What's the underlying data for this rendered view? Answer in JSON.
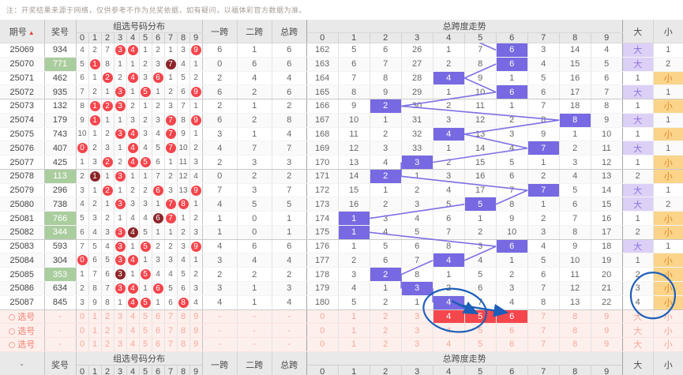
{
  "note": "注：开奖结果来源于网络，仅供参考不作为兑奖依据，如有疑问，以福体彩官方数据为准。",
  "header": {
    "period_label": "期号",
    "sort_icon": "▲",
    "prize_label": "奖号",
    "dist_group_label": "组选号码分布",
    "span1_label": "一跨",
    "span2_label": "二跨",
    "span_total_label": "总跨",
    "trend_group_label": "总跨度走势",
    "big_label": "大",
    "small_label": "小",
    "digits": [
      "0",
      "1",
      "2",
      "3",
      "4",
      "5",
      "6",
      "7",
      "8",
      "9"
    ],
    "footer_period_label": "-"
  },
  "colors": {
    "red_circle": "#f3454c",
    "dark_circle": "#8c2428",
    "prize_green": "#aacd9e",
    "trend_hit": "#7669e1",
    "trend_line": "#7d70e4",
    "big_bg": "#ddd0f7",
    "big_text": "#8e70dc",
    "small_bg": "#fbd489",
    "small_text": "#e0862f",
    "pick_bg": "#fdefec",
    "pick_red": "#f4474d",
    "annotation_blue": "#1d5eb8"
  },
  "chart_data": {
    "type": "table",
    "title": "总跨度走势",
    "columns": [
      "期号",
      "奖号",
      "组选0",
      "组选1",
      "组选2",
      "组选3",
      "组选4",
      "组选5",
      "组选6",
      "组选7",
      "组选8",
      "组选9",
      "一跨",
      "二跨",
      "总跨",
      "跨0",
      "跨1",
      "跨2",
      "跨3",
      "跨4",
      "跨5",
      "跨6",
      "跨7",
      "跨8",
      "跨9",
      "大",
      "小"
    ],
    "span_series": {
      "x": [
        "25069",
        "25070",
        "25071",
        "25072",
        "25073",
        "25074",
        "25075",
        "25076",
        "25077",
        "25078",
        "25079",
        "25080",
        "25081",
        "25082",
        "25083",
        "25084",
        "25085",
        "25086",
        "25087"
      ],
      "total_span": [
        6,
        6,
        4,
        6,
        2,
        8,
        4,
        7,
        3,
        2,
        7,
        5,
        1,
        1,
        6,
        4,
        2,
        3,
        4
      ]
    }
  },
  "rows": [
    {
      "period": "25069",
      "prize": "934",
      "green": false,
      "dist": [
        "4",
        "2",
        "7",
        "3",
        "4",
        "1",
        "2",
        "1",
        "3",
        "9"
      ],
      "circles": {
        "3": "red",
        "4": "red",
        "9": "red"
      },
      "span1": "6",
      "span2": "1",
      "span_total": "6",
      "trend": [
        "162",
        "5",
        "6",
        "26",
        "1",
        "7",
        "6",
        "3",
        "14",
        "4"
      ],
      "hit": 6,
      "big": "大",
      "big_hit": true,
      "small": "1",
      "small_hit": false
    },
    {
      "period": "25070",
      "prize": "771",
      "green": true,
      "dist": [
        "5",
        "1",
        "8",
        "1",
        "1",
        "2",
        "3",
        "7",
        "4",
        "1"
      ],
      "circles": {
        "1": "red",
        "7": "dark"
      },
      "span1": "0",
      "span2": "6",
      "span_total": "6",
      "trend": [
        "163",
        "6",
        "7",
        "27",
        "2",
        "8",
        "6",
        "4",
        "15",
        "5"
      ],
      "hit": 6,
      "big": "大",
      "big_hit": true,
      "small": "2",
      "small_hit": false
    },
    {
      "period": "25071",
      "prize": "462",
      "green": false,
      "dist": [
        "6",
        "1",
        "2",
        "2",
        "4",
        "3",
        "6",
        "1",
        "5",
        "2"
      ],
      "circles": {
        "2": "red",
        "4": "red",
        "6": "red"
      },
      "span1": "2",
      "span2": "4",
      "span_total": "4",
      "trend": [
        "164",
        "7",
        "8",
        "28",
        "4",
        "9",
        "1",
        "5",
        "16",
        "6"
      ],
      "hit": 4,
      "big": "1",
      "big_hit": false,
      "small": "小",
      "small_hit": true
    },
    {
      "period": "25072",
      "prize": "935",
      "green": false,
      "dist": [
        "7",
        "2",
        "1",
        "3",
        "1",
        "5",
        "1",
        "2",
        "6",
        "9"
      ],
      "circles": {
        "3": "red",
        "5": "red",
        "9": "red"
      },
      "span1": "6",
      "span2": "2",
      "span_total": "6",
      "trend": [
        "165",
        "8",
        "9",
        "29",
        "1",
        "10",
        "6",
        "6",
        "17",
        "7"
      ],
      "hit": 6,
      "big": "大",
      "big_hit": true,
      "small": "1",
      "small_hit": false
    },
    {
      "period": "25073",
      "prize": "132",
      "green": false,
      "dist": [
        "8",
        "1",
        "2",
        "3",
        "2",
        "1",
        "2",
        "3",
        "7",
        "1"
      ],
      "circles": {
        "1": "red",
        "2": "red",
        "3": "red"
      },
      "span1": "2",
      "span2": "1",
      "span_total": "2",
      "trend": [
        "166",
        "9",
        "2",
        "30",
        "2",
        "11",
        "1",
        "7",
        "18",
        "8"
      ],
      "hit": 2,
      "big": "1",
      "big_hit": false,
      "small": "小",
      "small_hit": true
    },
    {
      "period": "25074",
      "prize": "179",
      "green": false,
      "dist": [
        "9",
        "1",
        "1",
        "1",
        "3",
        "2",
        "3",
        "7",
        "8",
        "9"
      ],
      "circles": {
        "1": "red",
        "7": "red",
        "9": "red"
      },
      "span1": "6",
      "span2": "2",
      "span_total": "8",
      "trend": [
        "167",
        "10",
        "1",
        "31",
        "3",
        "12",
        "2",
        "8",
        "8",
        "9"
      ],
      "hit": 8,
      "big": "大",
      "big_hit": true,
      "small": "1",
      "small_hit": false
    },
    {
      "period": "25075",
      "prize": "743",
      "green": false,
      "dist": [
        "10",
        "1",
        "2",
        "3",
        "4",
        "3",
        "4",
        "7",
        "9",
        "1"
      ],
      "circles": {
        "3": "red",
        "4": "red",
        "7": "red"
      },
      "span1": "3",
      "span2": "1",
      "span_total": "4",
      "trend": [
        "168",
        "11",
        "2",
        "32",
        "4",
        "13",
        "3",
        "9",
        "1",
        "10"
      ],
      "hit": 4,
      "big": "1",
      "big_hit": false,
      "small": "小",
      "small_hit": true
    },
    {
      "period": "25076",
      "prize": "407",
      "green": false,
      "dist": [
        "0",
        "2",
        "3",
        "1",
        "4",
        "4",
        "5",
        "7",
        "10",
        "2"
      ],
      "circles": {
        "0": "red",
        "4": "red",
        "7": "red"
      },
      "span1": "4",
      "span2": "7",
      "span_total": "7",
      "trend": [
        "169",
        "12",
        "3",
        "33",
        "1",
        "14",
        "4",
        "7",
        "2",
        "11"
      ],
      "hit": 7,
      "big": "大",
      "big_hit": true,
      "small": "1",
      "small_hit": false
    },
    {
      "period": "25077",
      "prize": "425",
      "green": false,
      "dist": [
        "1",
        "3",
        "2",
        "2",
        "4",
        "5",
        "6",
        "1",
        "11",
        "3"
      ],
      "circles": {
        "2": "red",
        "4": "red",
        "5": "red"
      },
      "span1": "2",
      "span2": "3",
      "span_total": "3",
      "trend": [
        "170",
        "13",
        "4",
        "3",
        "2",
        "15",
        "5",
        "1",
        "3",
        "12"
      ],
      "hit": 3,
      "big": "1",
      "big_hit": false,
      "small": "小",
      "small_hit": true
    },
    {
      "period": "25078",
      "prize": "113",
      "green": true,
      "dist": [
        "2",
        "1",
        "1",
        "3",
        "1",
        "1",
        "7",
        "2",
        "12",
        "4"
      ],
      "circles": {
        "1": "dark",
        "3": "red"
      },
      "span1": "0",
      "span2": "2",
      "span_total": "2",
      "trend": [
        "171",
        "14",
        "2",
        "1",
        "3",
        "16",
        "6",
        "2",
        "4",
        "13"
      ],
      "hit": 2,
      "big": "2",
      "big_hit": false,
      "small": "小",
      "small_hit": true
    },
    {
      "period": "25079",
      "prize": "296",
      "green": false,
      "dist": [
        "3",
        "1",
        "2",
        "1",
        "2",
        "2",
        "6",
        "3",
        "13",
        "9"
      ],
      "circles": {
        "2": "red",
        "6": "red",
        "9": "red"
      },
      "span1": "7",
      "span2": "3",
      "span_total": "7",
      "trend": [
        "172",
        "15",
        "1",
        "2",
        "4",
        "17",
        "7",
        "7",
        "5",
        "14"
      ],
      "hit": 7,
      "big": "大",
      "big_hit": true,
      "small": "1",
      "small_hit": false
    },
    {
      "period": "25080",
      "prize": "738",
      "green": false,
      "dist": [
        "4",
        "2",
        "1",
        "3",
        "3",
        "3",
        "1",
        "7",
        "8",
        "1"
      ],
      "circles": {
        "3": "red",
        "7": "red",
        "8": "red"
      },
      "span1": "4",
      "span2": "5",
      "span_total": "5",
      "trend": [
        "173",
        "16",
        "2",
        "3",
        "5",
        "5",
        "8",
        "1",
        "6",
        "15"
      ],
      "hit": 5,
      "big": "大",
      "big_hit": true,
      "small": "2",
      "small_hit": false
    },
    {
      "period": "25081",
      "prize": "766",
      "green": true,
      "dist": [
        "5",
        "3",
        "2",
        "1",
        "4",
        "4",
        "6",
        "7",
        "1",
        "2"
      ],
      "circles": {
        "6": "dark",
        "7": "red"
      },
      "span1": "1",
      "span2": "0",
      "span_total": "1",
      "trend": [
        "174",
        "1",
        "3",
        "4",
        "6",
        "1",
        "9",
        "2",
        "7",
        "16"
      ],
      "hit": 1,
      "big": "1",
      "big_hit": false,
      "small": "小",
      "small_hit": true
    },
    {
      "period": "25082",
      "prize": "344",
      "green": true,
      "dist": [
        "6",
        "4",
        "3",
        "3",
        "4",
        "5",
        "1",
        "1",
        "2",
        "3"
      ],
      "circles": {
        "3": "red",
        "4": "dark"
      },
      "span1": "1",
      "span2": "0",
      "span_total": "1",
      "trend": [
        "175",
        "1",
        "4",
        "5",
        "7",
        "2",
        "10",
        "3",
        "8",
        "17"
      ],
      "hit": 1,
      "big": "2",
      "big_hit": false,
      "small": "小",
      "small_hit": true
    },
    {
      "period": "25083",
      "prize": "593",
      "green": false,
      "dist": [
        "7",
        "5",
        "4",
        "3",
        "1",
        "5",
        "2",
        "2",
        "3",
        "9"
      ],
      "circles": {
        "3": "red",
        "5": "red",
        "9": "red"
      },
      "span1": "4",
      "span2": "6",
      "span_total": "6",
      "trend": [
        "176",
        "1",
        "5",
        "6",
        "8",
        "3",
        "6",
        "4",
        "9",
        "18"
      ],
      "hit": 6,
      "big": "大",
      "big_hit": true,
      "small": "1",
      "small_hit": false
    },
    {
      "period": "25084",
      "prize": "304",
      "green": false,
      "dist": [
        "0",
        "6",
        "5",
        "3",
        "4",
        "1",
        "3",
        "3",
        "4",
        "1"
      ],
      "circles": {
        "0": "red",
        "3": "red",
        "4": "red"
      },
      "span1": "3",
      "span2": "4",
      "span_total": "4",
      "trend": [
        "177",
        "2",
        "6",
        "7",
        "4",
        "4",
        "1",
        "5",
        "10",
        "19"
      ],
      "hit": 4,
      "big": "1",
      "big_hit": false,
      "small": "小",
      "small_hit": true
    },
    {
      "period": "25085",
      "prize": "353",
      "green": true,
      "dist": [
        "1",
        "7",
        "6",
        "3",
        "1",
        "5",
        "4",
        "4",
        "5",
        "2"
      ],
      "circles": {
        "3": "dark",
        "5": "red"
      },
      "span1": "2",
      "span2": "2",
      "span_total": "2",
      "trend": [
        "178",
        "3",
        "2",
        "8",
        "1",
        "5",
        "2",
        "6",
        "11",
        "20"
      ],
      "hit": 2,
      "big": "2",
      "big_hit": false,
      "small": "小",
      "small_hit": true
    },
    {
      "period": "25086",
      "prize": "634",
      "green": false,
      "dist": [
        "2",
        "8",
        "7",
        "3",
        "4",
        "1",
        "6",
        "5",
        "6",
        "3"
      ],
      "circles": {
        "3": "red",
        "4": "red",
        "6": "red"
      },
      "span1": "3",
      "span2": "1",
      "span_total": "3",
      "trend": [
        "179",
        "4",
        "1",
        "3",
        "2",
        "6",
        "3",
        "7",
        "12",
        "21"
      ],
      "hit": 3,
      "big": "3",
      "big_hit": false,
      "small": "小",
      "small_hit": true
    },
    {
      "period": "25087",
      "prize": "845",
      "green": false,
      "dist": [
        "3",
        "9",
        "8",
        "1",
        "4",
        "5",
        "1",
        "6",
        "8",
        "4"
      ],
      "circles": {
        "4": "red",
        "5": "red",
        "8": "red"
      },
      "span1": "4",
      "span2": "1",
      "span_total": "4",
      "trend": [
        "180",
        "5",
        "2",
        "1",
        "4",
        "7",
        "4",
        "8",
        "13",
        "22"
      ],
      "hit": 4,
      "big": "4",
      "big_hit": false,
      "small": "小",
      "small_hit": true
    }
  ],
  "pick_rows": [
    {
      "label": "选号",
      "prize": "-",
      "span1": "-",
      "span2": "-",
      "span_total": "-",
      "red_cols": [
        4,
        5,
        6
      ],
      "big": "大",
      "small": "小"
    },
    {
      "label": "选号",
      "prize": "-",
      "span1": "-",
      "span2": "-",
      "span_total": "-",
      "red_cols": [],
      "big": "大",
      "small": "小"
    },
    {
      "label": "选号",
      "prize": "-",
      "span1": "-",
      "span2": "-",
      "span_total": "-",
      "red_cols": [],
      "big": "大",
      "small": "小"
    }
  ]
}
